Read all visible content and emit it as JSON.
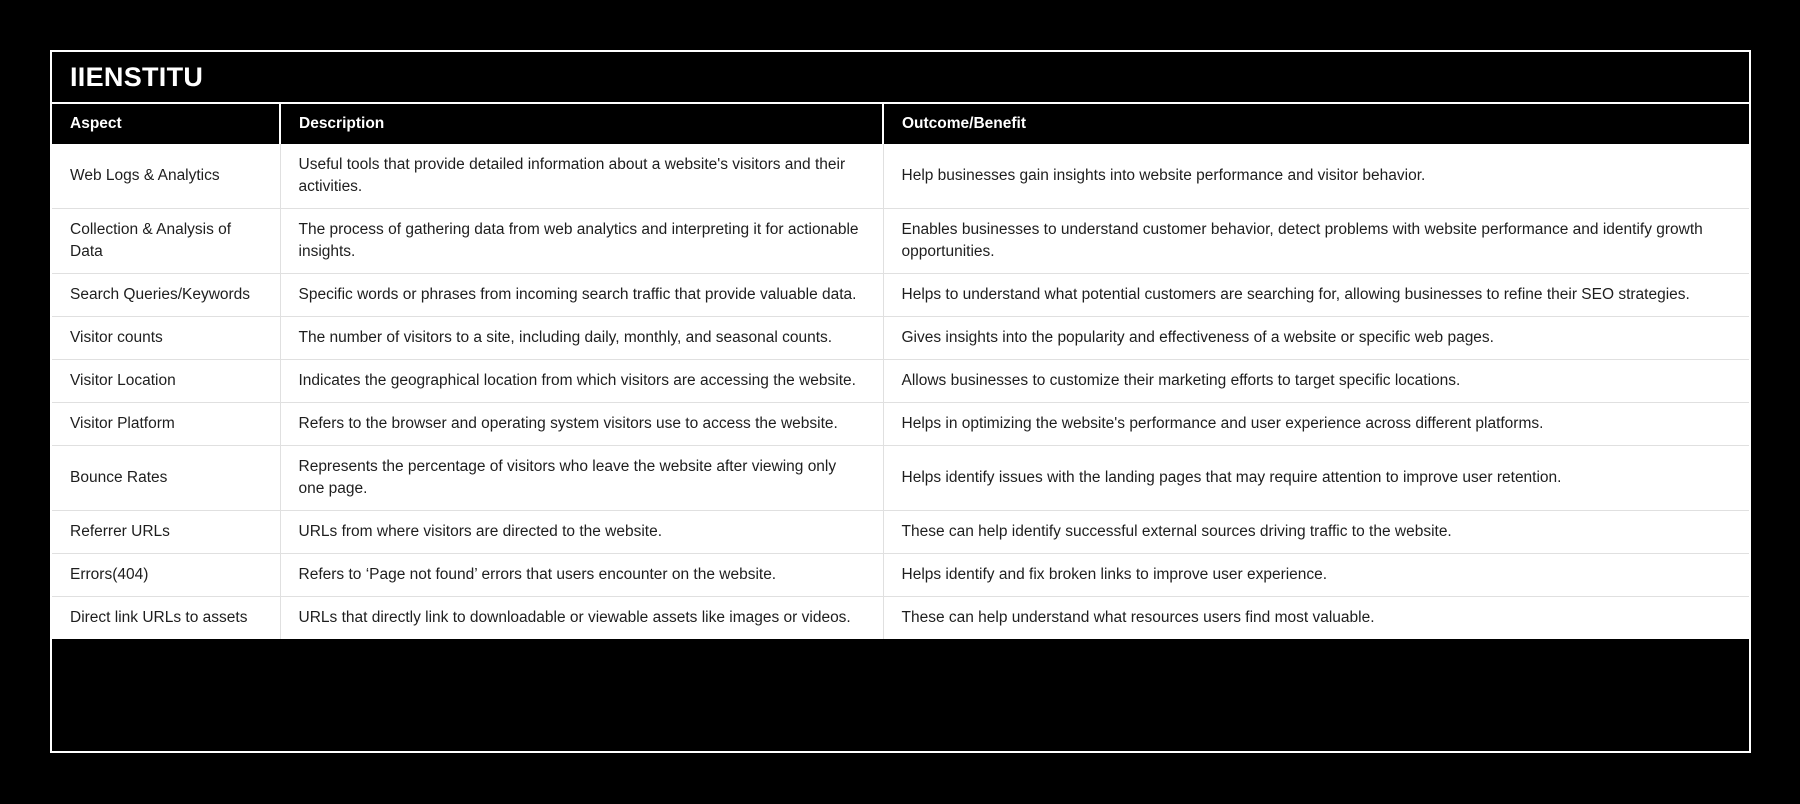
{
  "title": "IIENSTITU",
  "colors": {
    "page_background": "#000000",
    "frame_border": "#ffffff",
    "header_background": "#000000",
    "header_text": "#ffffff",
    "row_background": "#ffffff",
    "row_text": "#1e1e1e",
    "row_divider": "#e0e0e0"
  },
  "table": {
    "headers": [
      "Aspect",
      "Description",
      "Outcome/Benefit"
    ],
    "rows": [
      {
        "aspect": "Web Logs & Analytics",
        "description": "Useful tools that provide detailed information about a website's visitors and their activities.",
        "outcome": "Help businesses gain insights into website performance and visitor behavior."
      },
      {
        "aspect": "Collection & Analysis of Data",
        "description": "The process of gathering data from web analytics and interpreting it for actionable insights.",
        "outcome": "Enables businesses to understand customer behavior, detect problems with website performance and identify growth opportunities."
      },
      {
        "aspect": "Search Queries/Keywords",
        "description": "Specific words or phrases from incoming search traffic that provide valuable data.",
        "outcome": "Helps to understand what potential customers are searching for, allowing businesses to refine their SEO strategies."
      },
      {
        "aspect": "Visitor counts",
        "description": "The number of visitors to a site, including daily, monthly, and seasonal counts.",
        "outcome": "Gives insights into the popularity and effectiveness of a website or specific web pages."
      },
      {
        "aspect": "Visitor Location",
        "description": "Indicates the geographical location from which visitors are accessing the website.",
        "outcome": "Allows businesses to customize their marketing efforts to target specific locations."
      },
      {
        "aspect": "Visitor Platform",
        "description": "Refers to the browser and operating system visitors use to access the website.",
        "outcome": "Helps in optimizing the website's performance and user experience across different platforms."
      },
      {
        "aspect": "Bounce Rates",
        "description": "Represents the percentage of visitors who leave the website after viewing only one page.",
        "outcome": "Helps identify issues with the landing pages that may require attention to improve user retention."
      },
      {
        "aspect": "Referrer URLs",
        "description": "URLs from where visitors are directed to the website.",
        "outcome": "These can help identify successful external sources driving traffic to the website."
      },
      {
        "aspect": "Errors(404)",
        "description": "Refers to ‘Page not found’ errors that users encounter on the website.",
        "outcome": "Helps identify and fix broken links to improve user experience."
      },
      {
        "aspect": "Direct link URLs to assets",
        "description": "URLs that directly link to downloadable or viewable assets like images or videos.",
        "outcome": "These can help understand what resources users find most valuable."
      }
    ]
  }
}
